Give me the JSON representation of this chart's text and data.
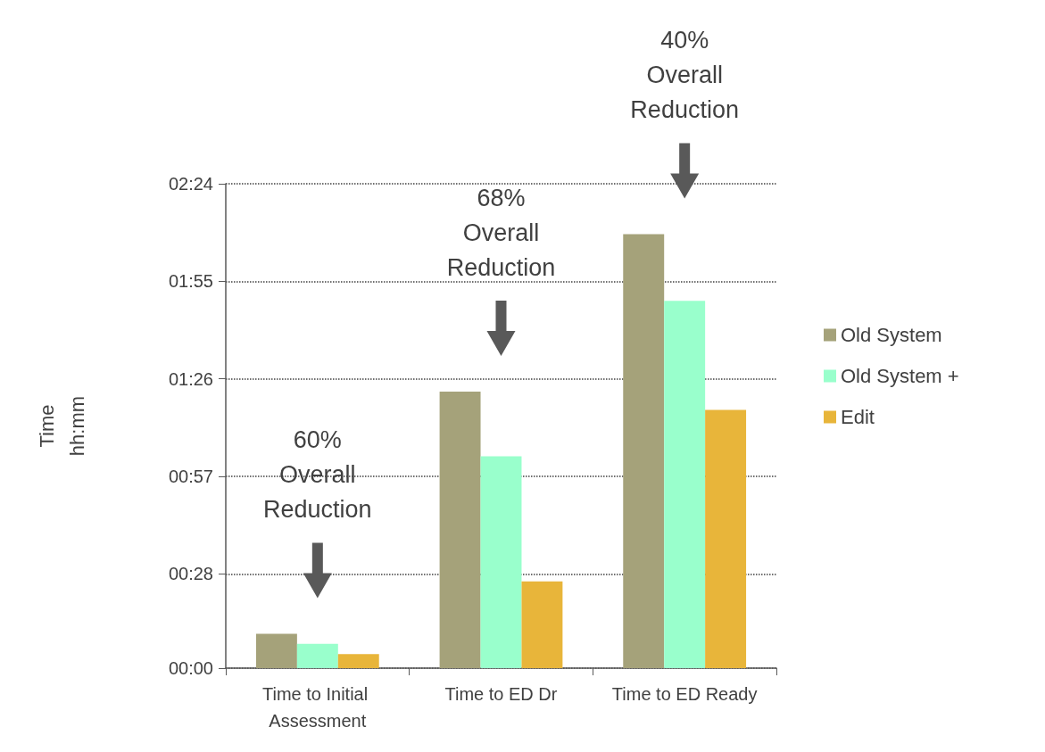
{
  "chart_data": {
    "type": "bar",
    "ylabel": "Time\nhh:mm",
    "categories": [
      "Time to Initial Assessment",
      "Time to ED Dr",
      "Time to ED Ready"
    ],
    "series": [
      {
        "name": "Old System",
        "color": "#a5a27a",
        "values": [
          0.17,
          1.37,
          2.15
        ]
      },
      {
        "name": "Old System +",
        "color": "#99ffcc",
        "values": [
          0.12,
          1.05,
          1.82
        ]
      },
      {
        "name": "Edit",
        "color": "#e8b53a",
        "values": [
          0.07,
          0.43,
          1.28
        ]
      }
    ],
    "ylim": [
      0,
      2.4
    ],
    "yticks": [
      {
        "value": 0,
        "label": "00:00"
      },
      {
        "value": 0.4667,
        "label": "00:28"
      },
      {
        "value": 0.95,
        "label": "00:57"
      },
      {
        "value": 1.4333,
        "label": "01:26"
      },
      {
        "value": 1.9167,
        "label": "01:55"
      },
      {
        "value": 2.4,
        "label": "02:24"
      }
    ],
    "grid": "y",
    "legend": "right",
    "annotations": [
      "60%\nOverall\nReduction",
      "68%\nOverall\nReduction",
      "40%\nOverall\nReduction"
    ]
  }
}
